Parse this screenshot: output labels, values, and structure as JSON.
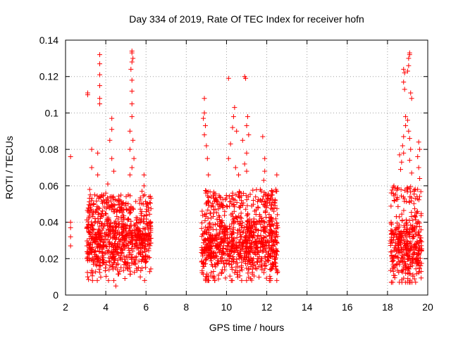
{
  "chart_data": {
    "type": "scatter",
    "title": "Day 334 of 2019, Rate Of TEC Index for receiver hofn",
    "xlabel": "GPS time / hours",
    "ylabel": "ROTI / TECUs",
    "xlim": [
      2,
      20
    ],
    "ylim": [
      0,
      0.14
    ],
    "xticks": [
      "2",
      "4",
      "6",
      "8",
      "10",
      "12",
      "14",
      "16",
      "18",
      "20"
    ],
    "yticks": [
      "0",
      "0.02",
      "0.04",
      "0.06",
      "0.08",
      "0.1",
      "0.12",
      "0.14"
    ],
    "grid": true,
    "marker": "+",
    "color": "#ff0000",
    "points": [
      [
        2.25,
        0.076
      ],
      [
        2.25,
        0.04
      ],
      [
        2.25,
        0.037
      ],
      [
        2.25,
        0.032
      ],
      [
        2.25,
        0.027
      ],
      [
        3.1,
        0.111
      ],
      [
        3.1,
        0.11
      ],
      [
        3.3,
        0.08
      ],
      [
        3.3,
        0.07
      ],
      [
        3.2,
        0.058
      ],
      [
        3.7,
        0.132
      ],
      [
        3.7,
        0.127
      ],
      [
        3.7,
        0.121
      ],
      [
        3.7,
        0.115
      ],
      [
        3.7,
        0.108
      ],
      [
        3.7,
        0.105
      ],
      [
        3.6,
        0.078
      ],
      [
        3.6,
        0.066
      ],
      [
        4.3,
        0.097
      ],
      [
        4.3,
        0.091
      ],
      [
        4.2,
        0.085
      ],
      [
        4.3,
        0.075
      ],
      [
        4.4,
        0.068
      ],
      [
        4.1,
        0.061
      ],
      [
        4.0,
        0.056
      ],
      [
        5.3,
        0.134
      ],
      [
        5.3,
        0.133
      ],
      [
        5.35,
        0.13
      ],
      [
        5.3,
        0.128
      ],
      [
        5.25,
        0.124
      ],
      [
        5.3,
        0.118
      ],
      [
        5.3,
        0.112
      ],
      [
        5.3,
        0.105
      ],
      [
        5.3,
        0.098
      ],
      [
        5.2,
        0.09
      ],
      [
        5.35,
        0.085
      ],
      [
        5.2,
        0.08
      ],
      [
        5.4,
        0.075
      ],
      [
        5.3,
        0.07
      ],
      [
        5.2,
        0.066
      ],
      [
        5.9,
        0.066
      ],
      [
        5.9,
        0.06
      ],
      [
        5.8,
        0.057
      ],
      [
        4.5,
        0.005
      ],
      [
        4.4,
        0.008
      ],
      [
        3.1,
        0.01
      ],
      [
        8.9,
        0.108
      ],
      [
        8.9,
        0.1
      ],
      [
        8.85,
        0.097
      ],
      [
        8.95,
        0.093
      ],
      [
        8.9,
        0.088
      ],
      [
        9.0,
        0.082
      ],
      [
        9.05,
        0.075
      ],
      [
        9.1,
        0.066
      ],
      [
        9.0,
        0.057
      ],
      [
        10.1,
        0.119
      ],
      [
        10.4,
        0.103
      ],
      [
        10.35,
        0.098
      ],
      [
        10.3,
        0.092
      ],
      [
        10.5,
        0.09
      ],
      [
        10.2,
        0.083
      ],
      [
        10.1,
        0.075
      ],
      [
        10.45,
        0.07
      ],
      [
        10.6,
        0.066
      ],
      [
        10.9,
        0.12
      ],
      [
        10.95,
        0.119
      ],
      [
        11.05,
        0.098
      ],
      [
        11.0,
        0.093
      ],
      [
        11.1,
        0.088
      ],
      [
        10.8,
        0.085
      ],
      [
        11.0,
        0.078
      ],
      [
        10.9,
        0.072
      ],
      [
        11.0,
        0.068
      ],
      [
        11.8,
        0.087
      ],
      [
        11.9,
        0.075
      ],
      [
        11.9,
        0.068
      ],
      [
        11.85,
        0.063
      ],
      [
        12.5,
        0.066
      ],
      [
        12.45,
        0.058
      ],
      [
        18.6,
        0.077
      ],
      [
        18.7,
        0.073
      ],
      [
        18.65,
        0.069
      ],
      [
        18.8,
        0.124
      ],
      [
        18.85,
        0.122
      ],
      [
        18.8,
        0.117
      ],
      [
        18.85,
        0.113
      ],
      [
        18.9,
        0.098
      ],
      [
        18.9,
        0.093
      ],
      [
        18.8,
        0.087
      ],
      [
        18.75,
        0.082
      ],
      [
        18.8,
        0.078
      ],
      [
        19.1,
        0.133
      ],
      [
        19.1,
        0.132
      ],
      [
        19.05,
        0.13
      ],
      [
        19.05,
        0.126
      ],
      [
        19.0,
        0.123
      ],
      [
        19.15,
        0.111
      ],
      [
        19.2,
        0.108
      ],
      [
        19.0,
        0.096
      ],
      [
        19.05,
        0.09
      ],
      [
        19.1,
        0.086
      ],
      [
        19.15,
        0.08
      ],
      [
        19.1,
        0.074
      ],
      [
        19.2,
        0.067
      ],
      [
        19.55,
        0.084
      ],
      [
        19.6,
        0.08
      ],
      [
        19.5,
        0.076
      ],
      [
        19.55,
        0.07
      ],
      [
        19.6,
        0.064
      ]
    ],
    "clusters": [
      {
        "x": [
          3.05,
          6.25
        ],
        "y_low": 0.008,
        "y_high": 0.055,
        "center": 0.03
      },
      {
        "x": [
          8.75,
          12.55
        ],
        "y_low": 0.008,
        "y_high": 0.058,
        "center": 0.028
      },
      {
        "x": [
          18.15,
          19.7
        ],
        "y_low": 0.007,
        "y_high": 0.06,
        "center": 0.026
      }
    ]
  }
}
